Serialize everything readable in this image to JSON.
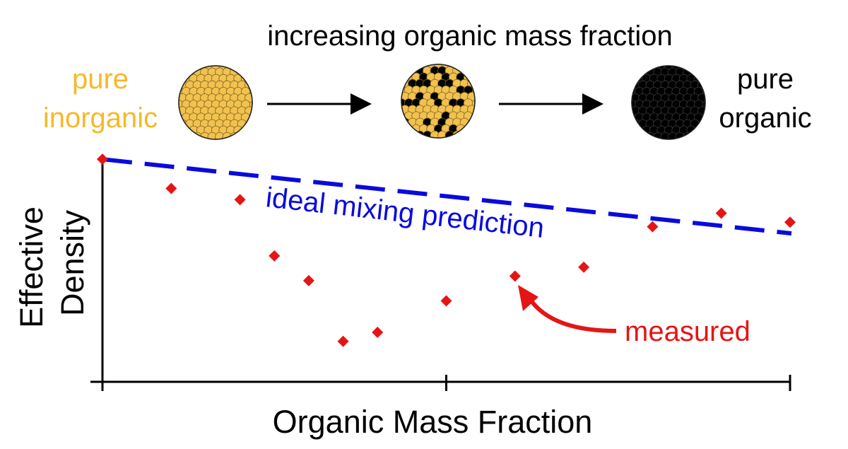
{
  "header": {
    "title": "increasing organic mass fraction",
    "left_label": [
      "pure",
      "inorganic"
    ],
    "right_label": [
      "pure",
      "organic"
    ]
  },
  "colors": {
    "inorganic": "#F2C14E",
    "inorganic_text": "#F5B92A",
    "organic": "#000000",
    "prediction": "#0A0ADE",
    "measured": "#E51515",
    "axis": "#000000"
  },
  "particles": [
    {
      "kind": "pure-inorganic",
      "organic_fraction": 0.0
    },
    {
      "kind": "mixed",
      "organic_fraction": 0.3
    },
    {
      "kind": "pure-organic",
      "organic_fraction": 1.0
    }
  ],
  "chart_data": {
    "type": "scatter",
    "xlabel": "Organic Mass Fraction",
    "ylabel": [
      "Effective",
      "Density"
    ],
    "xlim": [
      0,
      1
    ],
    "ylim": [
      0,
      1
    ],
    "x_ticks": [
      0,
      0.5,
      1
    ],
    "grid": false,
    "series": [
      {
        "name": "measured",
        "marker": "diamond",
        "points": [
          {
            "x": 0.0,
            "y": 0.99
          },
          {
            "x": 0.1,
            "y": 0.86
          },
          {
            "x": 0.2,
            "y": 0.81
          },
          {
            "x": 0.25,
            "y": 0.56
          },
          {
            "x": 0.3,
            "y": 0.45
          },
          {
            "x": 0.35,
            "y": 0.18
          },
          {
            "x": 0.4,
            "y": 0.22
          },
          {
            "x": 0.5,
            "y": 0.36
          },
          {
            "x": 0.6,
            "y": 0.47
          },
          {
            "x": 0.7,
            "y": 0.51
          },
          {
            "x": 0.8,
            "y": 0.69
          },
          {
            "x": 0.9,
            "y": 0.75
          },
          {
            "x": 1.0,
            "y": 0.71
          }
        ]
      },
      {
        "name": "ideal mixing prediction",
        "style": "dashed-line",
        "points": [
          {
            "x": 0.0,
            "y": 0.99
          },
          {
            "x": 1.0,
            "y": 0.66
          }
        ]
      }
    ],
    "annotations": {
      "prediction_label": "ideal mixing prediction",
      "measured_label": "measured"
    }
  }
}
